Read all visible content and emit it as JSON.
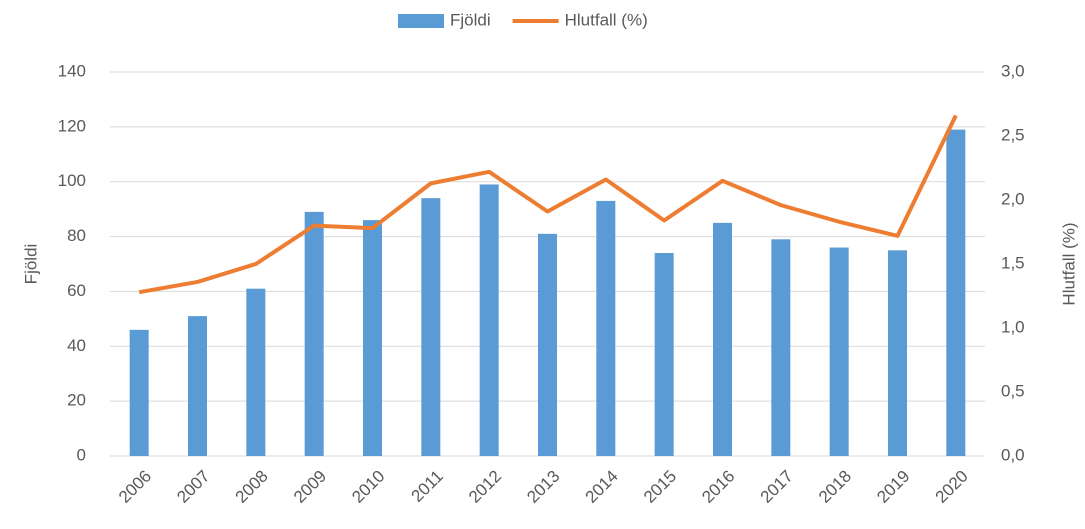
{
  "chart_data": {
    "type": "bar-line",
    "categories": [
      "2006",
      "2007",
      "2008",
      "2009",
      "2010",
      "2011",
      "2012",
      "2013",
      "2014",
      "2015",
      "2016",
      "2017",
      "2018",
      "2019",
      "2020"
    ],
    "series": [
      {
        "name": "Fjöldi",
        "type": "bar",
        "color": "#5b9bd5",
        "values": [
          46,
          51,
          61,
          89,
          86,
          94,
          99,
          81,
          93,
          74,
          85,
          79,
          76,
          75,
          119
        ]
      },
      {
        "name": "Hlutfall (%)",
        "type": "line",
        "color": "#ed7d31",
        "axis": "y2",
        "values": [
          1.28,
          1.36,
          1.5,
          1.8,
          1.78,
          2.13,
          2.22,
          1.91,
          2.16,
          1.84,
          2.15,
          1.96,
          1.83,
          1.72,
          2.66
        ]
      }
    ],
    "y_label": "Fjöldi",
    "y2_label": "Hlutfall (%)",
    "ylim": [
      0,
      140
    ],
    "yticks": [
      0,
      20,
      40,
      60,
      80,
      100,
      120,
      140
    ],
    "y2lim": [
      0,
      3
    ],
    "y2ticks": [
      {
        "value": 0,
        "label": "0,0"
      },
      {
        "value": 0.5,
        "label": "0,5"
      },
      {
        "value": 1,
        "label": "1,0"
      },
      {
        "value": 1.5,
        "label": "1,5"
      },
      {
        "value": 2,
        "label": "2,0"
      },
      {
        "value": 2.5,
        "label": "2,5"
      },
      {
        "value": 3,
        "label": "3,0"
      }
    ],
    "grid": true,
    "legend": "top"
  }
}
